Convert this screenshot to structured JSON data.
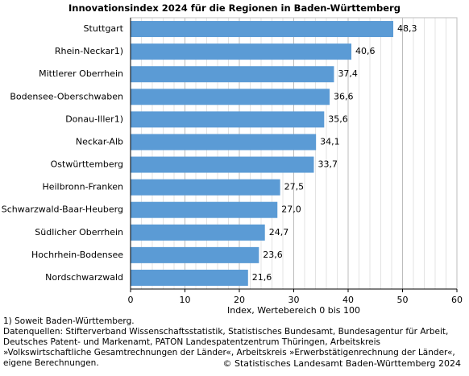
{
  "chart_data": {
    "type": "bar",
    "orientation": "horizontal",
    "title": "Innovationsindex 2024 für die Regionen in Baden-Württemberg",
    "xlabel": "Index, Wertebereich 0 bis 100",
    "xlim": [
      0,
      60
    ],
    "xticks": [
      0,
      10,
      20,
      30,
      40,
      50,
      60
    ],
    "grid": true,
    "bar_color": "#5b9bd5",
    "categories": [
      "Stuttgart",
      "Rhein-Neckar1)",
      "Mittlerer Oberrhein",
      "Bodensee-Oberschwaben",
      "Donau-Iller1)",
      "Neckar-Alb",
      "Ostwürttemberg",
      "Heilbronn-Franken",
      "Schwarzwald-Baar-Heuberg",
      "Südlicher Oberrhein",
      "Hochrhein-Bodensee",
      "Nordschwarzwald"
    ],
    "values": [
      48.3,
      40.6,
      37.4,
      36.6,
      35.6,
      34.1,
      33.7,
      27.5,
      27.0,
      24.7,
      23.6,
      21.6
    ],
    "value_labels": [
      "48,3",
      "40,6",
      "37,4",
      "36,6",
      "35,6",
      "34,1",
      "33,7",
      "27,5",
      "27,0",
      "24,7",
      "23,6",
      "21,6"
    ]
  },
  "footnotes": [
    "1) Soweit Baden-Württemberg.",
    "Datenquellen: Stifterverband Wissenschaftsstatistik, Statistisches Bundesamt, Bundesagentur für Arbeit,",
    "Deutsches Patent- und Markenamt, PATON Landespatentzentrum Thüringen, Arbeitskreis",
    "»Volkswirtschaftliche Gesamtrechnungen der Länder«, Arbeitskreis »Erwerbstätigenrechnung der Länder«,",
    "eigene Berechnungen."
  ],
  "copyright": "© Statistisches Landesamt Baden-Württemberg 2024"
}
